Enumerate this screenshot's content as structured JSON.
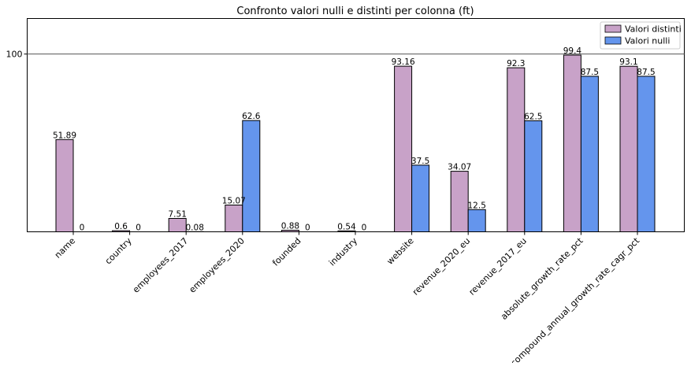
{
  "chart_data": {
    "type": "bar",
    "title": "Confronto valori nulli e distinti per colonna (ft)",
    "xlabel": "",
    "ylabel": "",
    "ylim": [
      0,
      120
    ],
    "yticks": [
      100
    ],
    "categories": [
      "name",
      "country",
      "employees_2017",
      "employees_2020",
      "founded",
      "industry",
      "website",
      "revenue_2020_eu",
      "revenue_2017_eu",
      "absolute_growth_rate_pct",
      "compound_annual_growth_rate_cagr_pct"
    ],
    "series": [
      {
        "name": "Valori distinti",
        "color": "#c8a2c8",
        "values": [
          51.89,
          0.6,
          7.51,
          15.07,
          0.88,
          0.54,
          93.16,
          34.07,
          92.3,
          99.4,
          93.1
        ],
        "labels": [
          "51.89",
          "0.6",
          "7.51",
          "15.07",
          "0.88",
          "0.54",
          "93.16",
          "34.07",
          "92.3",
          "99.4",
          "93.1"
        ]
      },
      {
        "name": "Valori nulli",
        "color": "#6495ed",
        "values": [
          0,
          0,
          0.08,
          62.6,
          0,
          0,
          37.5,
          12.5,
          62.5,
          87.5,
          87.5
        ],
        "labels": [
          "0",
          "0",
          "0.08",
          "62.6",
          "0",
          "0",
          "37.5",
          "12.5",
          "62.5",
          "87.5",
          "87.5"
        ]
      }
    ],
    "hline": 100,
    "grid": false,
    "legend_position": "top-right"
  }
}
